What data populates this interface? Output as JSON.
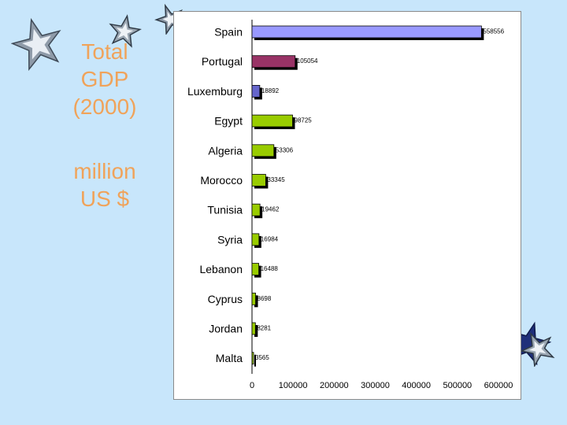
{
  "title_lines": [
    "Total",
    "GDP",
    "(2000)"
  ],
  "unit_lines": [
    "million",
    "US $"
  ],
  "chart_data": {
    "type": "bar",
    "orientation": "horizontal",
    "categories": [
      "Spain",
      "Portugal",
      "Luxemburg",
      "Egypt",
      "Algeria",
      "Morocco",
      "Tunisia",
      "Syria",
      "Lebanon",
      "Cyprus",
      "Jordan",
      "Malta"
    ],
    "values": [
      558556,
      105054,
      18892,
      98725,
      53306,
      33345,
      19462,
      16984,
      16488,
      8698,
      8281,
      3565
    ],
    "bar_colors": [
      "#9999ff",
      "#993366",
      "#6666cc",
      "#99cc00",
      "#99cc00",
      "#99cc00",
      "#99cc00",
      "#99cc00",
      "#99cc00",
      "#99cc00",
      "#99cc00",
      "#99cc00"
    ],
    "x_ticks": [
      0,
      100000,
      200000,
      300000,
      400000,
      500000,
      600000
    ],
    "x_tick_labels": [
      "0",
      "100000",
      "200000",
      "300000",
      "400000",
      "500000",
      "600000"
    ],
    "xlim": [
      0,
      600000
    ],
    "grid": false
  }
}
